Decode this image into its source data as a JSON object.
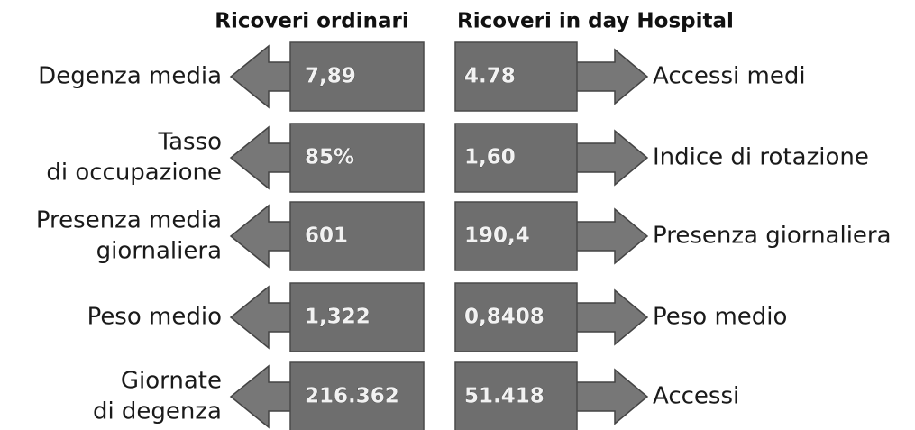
{
  "headers": {
    "left": "Ricoveri ordinari",
    "right": "Ricoveri in day Hospital"
  },
  "rows": [
    {
      "left_label": [
        "Degenza media"
      ],
      "left_value": "7,89",
      "right_value": "4.78",
      "right_label": [
        "Accessi medi"
      ]
    },
    {
      "left_label": [
        "Tasso",
        "di occupazione"
      ],
      "left_value": "85%",
      "right_value": "1,60",
      "right_label": [
        "Indice di rotazione"
      ]
    },
    {
      "left_label": [
        "Presenza media",
        "giornaliera"
      ],
      "left_value": "601",
      "right_value": "190,4",
      "right_label": [
        "Presenza giornaliera"
      ]
    },
    {
      "left_label": [
        "Peso medio"
      ],
      "left_value": "1,322",
      "right_value": "0,8408",
      "right_label": [
        "Peso medio"
      ]
    },
    {
      "left_label": [
        "Giornate",
        "di degenza"
      ],
      "left_value": "216.362",
      "right_value": "51.418",
      "right_label": [
        "Accessi"
      ]
    }
  ]
}
